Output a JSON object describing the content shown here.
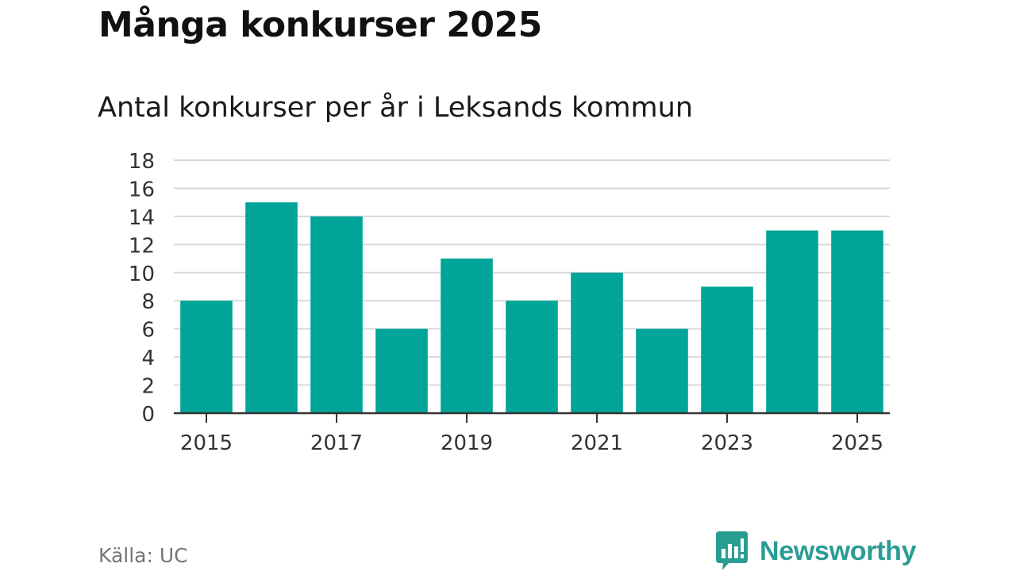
{
  "title": "Många konkurser 2025",
  "chart_data": {
    "type": "bar",
    "title": "Många konkurser 2025",
    "subtitle": "Antal konkurser per år i Leksands kommun",
    "categories": [
      "2015",
      "2016",
      "2017",
      "2018",
      "2019",
      "2020",
      "2021",
      "2022",
      "2023",
      "2024",
      "2025"
    ],
    "values": [
      8,
      15,
      14,
      6,
      11,
      8,
      10,
      6,
      9,
      13,
      13
    ],
    "x_tick_labels": [
      "2015",
      "2017",
      "2019",
      "2021",
      "2023",
      "2025"
    ],
    "y_ticks": [
      0,
      2,
      4,
      6,
      8,
      10,
      12,
      14,
      16,
      18
    ],
    "ylim": [
      0,
      18
    ],
    "xlabel": "",
    "ylabel": "",
    "grid": true,
    "bar_color": "#00a499"
  },
  "source": "Källa: UC",
  "logo": {
    "text": "Newsworthy",
    "icon": "newsworthy-logo-icon",
    "color": "#2a9d93"
  }
}
